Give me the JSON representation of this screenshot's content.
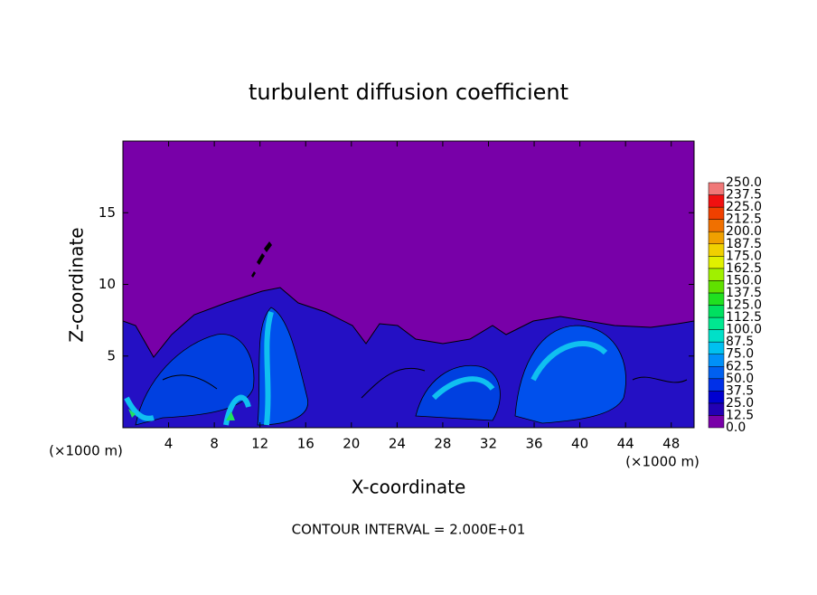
{
  "chart_data": {
    "type": "contour",
    "title": "turbulent diffusion coefficient",
    "xlabel": "X-coordinate",
    "ylabel": "Z-coordinate",
    "x_unit_left": "(×1000 m)",
    "x_unit_right": "(×1000 m)",
    "footer": "CONTOUR INTERVAL = 2.000E+01",
    "xlim": [
      0,
      50
    ],
    "xticks": [
      4,
      8,
      12,
      16,
      20,
      24,
      28,
      32,
      36,
      40,
      44,
      48
    ],
    "ylim": [
      0,
      20
    ],
    "yticks": [
      5,
      10,
      15
    ],
    "colorbar": {
      "levels": [
        {
          "value": 0,
          "label": "0.0"
        },
        {
          "value": 12.5,
          "label": "12.5"
        },
        {
          "value": 25,
          "label": "25.0"
        },
        {
          "value": 37.5,
          "label": "37.5"
        },
        {
          "value": 50,
          "label": "50.0"
        },
        {
          "value": 62.5,
          "label": "62.5"
        },
        {
          "value": 75,
          "label": "75.0"
        },
        {
          "value": 87.5,
          "label": "87.5"
        },
        {
          "value": 100,
          "label": "100.0"
        },
        {
          "value": 112.5,
          "label": "112.5"
        },
        {
          "value": 125,
          "label": "125.0"
        },
        {
          "value": 137.5,
          "label": "137.5"
        },
        {
          "value": 150,
          "label": "150.0"
        },
        {
          "value": 162.5,
          "label": "162.5"
        },
        {
          "value": 175,
          "label": "175.0"
        },
        {
          "value": 187.5,
          "label": "187.5"
        },
        {
          "value": 200,
          "label": "200.0"
        },
        {
          "value": 212.5,
          "label": "212.5"
        },
        {
          "value": 225,
          "label": "225.0"
        },
        {
          "value": 237.5,
          "label": "237.5"
        },
        {
          "value": 250,
          "label": "250.0"
        }
      ],
      "colors": [
        "#7800a8",
        "#2200b4",
        "#0000d0",
        "#0030e8",
        "#0060f0",
        "#0090f8",
        "#00c0f0",
        "#00e0c8",
        "#00e890",
        "#00e060",
        "#20e020",
        "#60e000",
        "#a0f000",
        "#e0f000",
        "#f0d000",
        "#f0a000",
        "#f07000",
        "#f04000",
        "#f01010",
        "#f07878"
      ]
    }
  }
}
